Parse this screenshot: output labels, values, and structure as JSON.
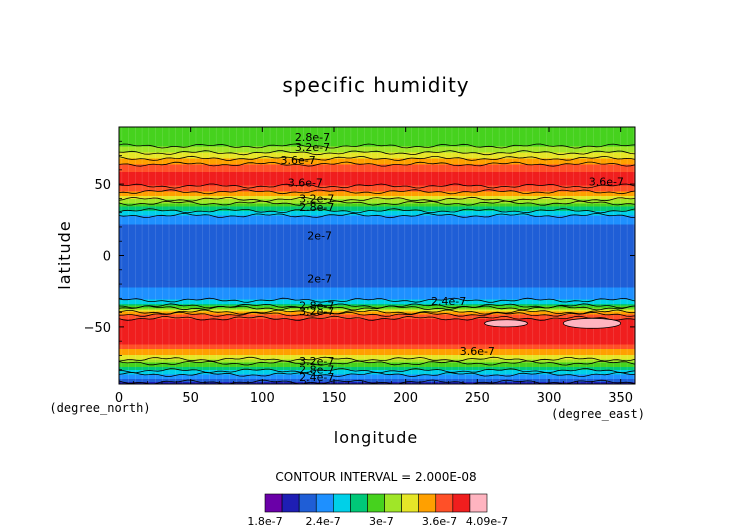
{
  "chart_data": {
    "type": "heatmap",
    "title": "specific humidity",
    "xlabel": "longitude",
    "ylabel": "latitude",
    "x_unit": "(degree_east)",
    "y_unit": "(degree_north)",
    "xlim": [
      0,
      360
    ],
    "ylim": [
      -90,
      90
    ],
    "x_ticks": [
      "0",
      "50",
      "100",
      "150",
      "200",
      "250",
      "300",
      "350"
    ],
    "y_ticks": [
      "50",
      "0",
      "−50"
    ],
    "contour_interval_text": "CONTOUR INTERVAL = 2.000E-08",
    "levels": [
      1.8e-07,
      2e-07,
      2.2e-07,
      2.4e-07,
      2.6e-07,
      2.8e-07,
      3e-07,
      3.2e-07,
      3.4e-07,
      3.6e-07,
      3.8e-07,
      4e-07
    ],
    "level_colors": [
      "#6a00a8",
      "#1e1eb4",
      "#1f5ed6",
      "#1e90ff",
      "#00d0e8",
      "#00c878",
      "#46d21e",
      "#a0e628",
      "#e6e628",
      "#ffa000",
      "#ff5028",
      "#f01e1e",
      "#ffb4c0"
    ],
    "colorbar_labels": [
      "1.8e-7",
      "2.4e-7",
      "3e-7",
      "3.6e-7",
      "4.09e-7"
    ],
    "zonal_profile": {
      "lat": [
        -90,
        -86,
        -82,
        -78,
        -74,
        -70,
        -66,
        -62,
        -58,
        -54,
        -50,
        -46,
        -42,
        -38,
        -34,
        -30,
        -26,
        -22,
        -18,
        -14,
        -10,
        -5,
        0,
        5,
        10,
        14,
        18,
        22,
        26,
        30,
        34,
        38,
        42,
        46,
        50,
        54,
        58,
        62,
        66,
        70,
        74,
        78,
        82,
        86,
        90
      ],
      "value": [
        1.9e-07,
        2.2e-07,
        2.5e-07,
        2.8e-07,
        3.1e-07,
        3.4e-07,
        3.6e-07,
        3.8e-07,
        3.9e-07,
        3.95e-07,
        3.95e-07,
        3.9e-07,
        3.7e-07,
        3.2e-07,
        2.6e-07,
        2.3e-07,
        2.25e-07,
        2.2e-07,
        2.1e-07,
        2.05e-07,
        2.05e-07,
        2.05e-07,
        2.05e-07,
        2.05e-07,
        2.05e-07,
        2.05e-07,
        2.15e-07,
        2.2e-07,
        2.3e-07,
        2.5e-07,
        2.8e-07,
        3.1e-07,
        3.4e-07,
        3.7e-07,
        3.85e-07,
        3.85e-07,
        3.8e-07,
        3.7e-07,
        3.5e-07,
        3.3e-07,
        3.1e-07,
        2.95e-07,
        2.85e-07,
        2.8e-07,
        2.8e-07
      ]
    },
    "peak_regions": [
      {
        "lon": [
          255,
          285
        ],
        "lat": [
          -50,
          -45
        ],
        "value": 4.05e-07
      },
      {
        "lon": [
          310,
          350
        ],
        "lat": [
          -51,
          -44
        ],
        "value": 4.05e-07
      }
    ],
    "contour_labels": [
      {
        "text": "2.8e-7",
        "lon": 135,
        "lat": 83
      },
      {
        "text": "3.2e-7",
        "lon": 135,
        "lat": 76
      },
      {
        "text": "3.6e-7",
        "lon": 125,
        "lat": 67
      },
      {
        "text": "3.6e-7",
        "lon": 130,
        "lat": 51
      },
      {
        "text": "3.6e-7",
        "lon": 340,
        "lat": 52
      },
      {
        "text": "3.2e-7",
        "lon": 138,
        "lat": 40
      },
      {
        "text": "2.8e-7",
        "lon": 138,
        "lat": 34
      },
      {
        "text": "2e-7",
        "lon": 140,
        "lat": 14
      },
      {
        "text": "2e-7",
        "lon": 140,
        "lat": -16
      },
      {
        "text": "2.4e-7",
        "lon": 230,
        "lat": -32
      },
      {
        "text": "2.8e-7",
        "lon": 138,
        "lat": -35
      },
      {
        "text": "3.2e-7",
        "lon": 138,
        "lat": -39
      },
      {
        "text": "3.6e-7",
        "lon": 250,
        "lat": -67
      },
      {
        "text": "3.2e-7",
        "lon": 138,
        "lat": -74
      },
      {
        "text": "2.8e-7",
        "lon": 138,
        "lat": -80
      },
      {
        "text": "2.4e-7",
        "lon": 138,
        "lat": -85
      }
    ]
  }
}
